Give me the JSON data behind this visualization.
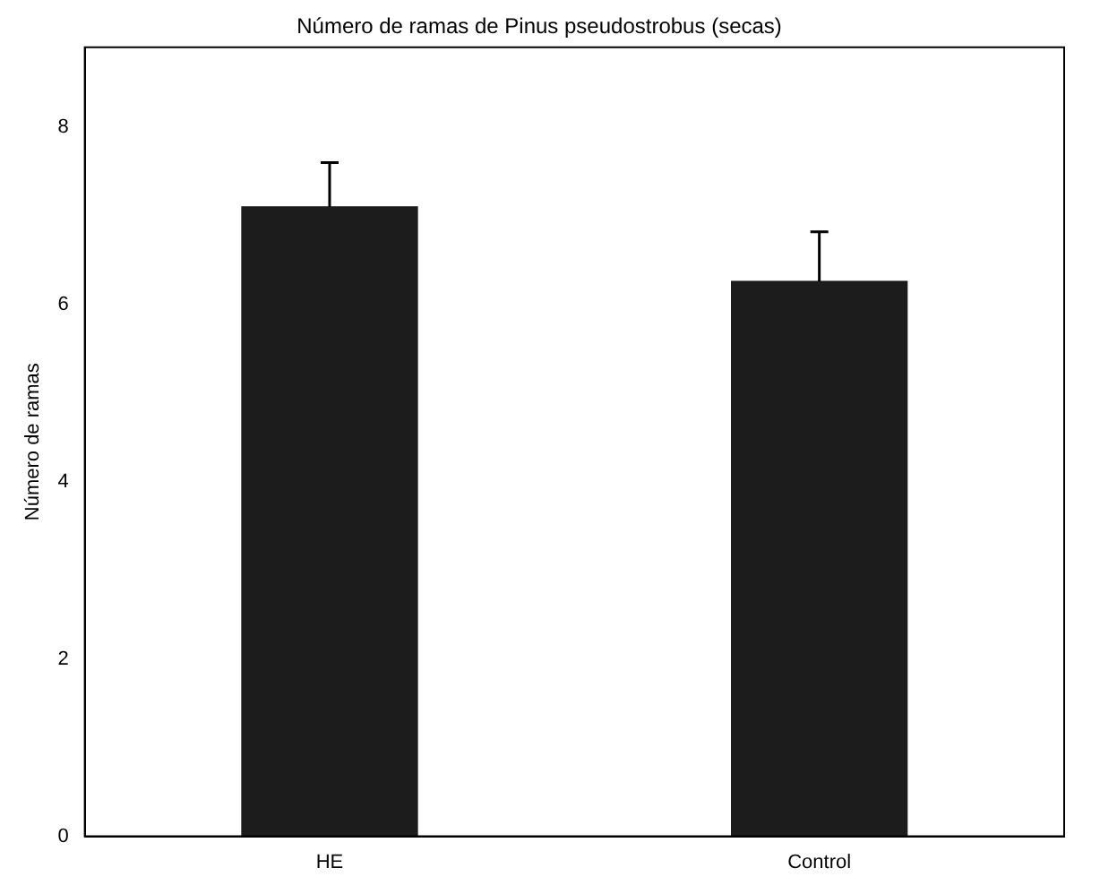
{
  "chart_data": {
    "type": "bar",
    "title": "Número de ramas de Pinus pseudostrobus (secas)",
    "ylabel": "Número de ramas",
    "categories": [
      "HE",
      "Control"
    ],
    "values": [
      7.1,
      6.26
    ],
    "errors": [
      [
        7.1,
        7.6
      ],
      [
        6.26,
        6.82
      ]
    ],
    "color": "#1c1c1c",
    "ylim": [
      0,
      8.9
    ],
    "yticks": [
      0,
      2,
      4,
      6,
      8
    ],
    "grid": false,
    "legend": false
  }
}
